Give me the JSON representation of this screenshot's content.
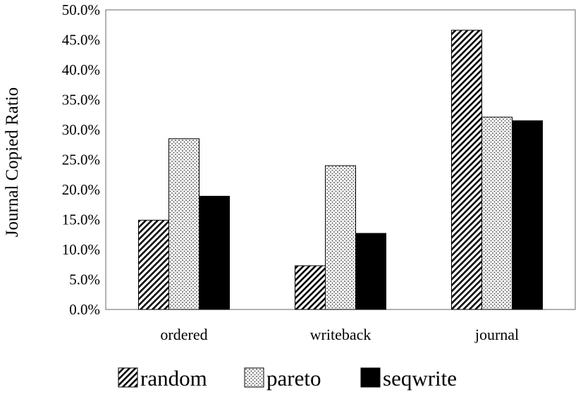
{
  "chart_data": {
    "type": "bar",
    "title": "",
    "xlabel": "",
    "ylabel": "Journal Copied Ratio",
    "ylim": [
      0,
      0.5
    ],
    "yticks": [
      "0.0%",
      "5.0%",
      "10.0%",
      "15.0%",
      "20.0%",
      "25.0%",
      "30.0%",
      "35.0%",
      "40.0%",
      "45.0%",
      "50.0%"
    ],
    "categories": [
      "ordered",
      "writeback",
      "journal"
    ],
    "series": [
      {
        "name": "random",
        "pattern": "diagonal-hatch",
        "values": [
          0.149,
          0.073,
          0.466
        ]
      },
      {
        "name": "pareto",
        "pattern": "dots",
        "values": [
          0.285,
          0.24,
          0.321
        ]
      },
      {
        "name": "seqwrite",
        "pattern": "solid",
        "color": "#000000",
        "values": [
          0.189,
          0.127,
          0.315
        ]
      }
    ],
    "grid": false,
    "legend_position": "bottom"
  }
}
